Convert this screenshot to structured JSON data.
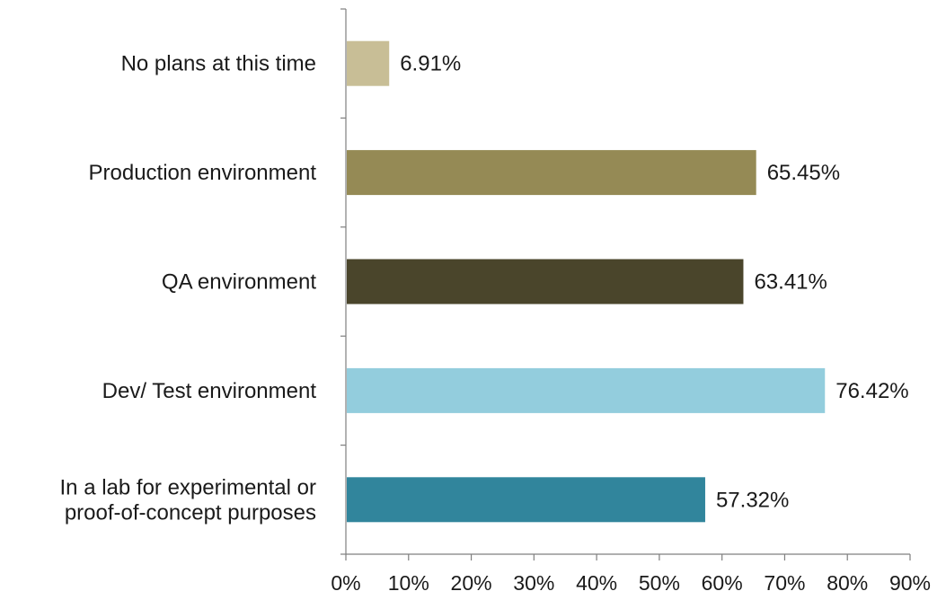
{
  "chart_data": {
    "type": "bar",
    "orientation": "horizontal",
    "categories": [
      [
        "No plans at this time"
      ],
      [
        "Production environment"
      ],
      [
        "QA environment"
      ],
      [
        "Dev/ Test environment"
      ],
      [
        "In a lab for experimental or",
        "proof-of-concept purposes"
      ]
    ],
    "values": [
      6.91,
      65.45,
      63.41,
      76.42,
      57.32
    ],
    "value_labels": [
      "6.91%",
      "65.45%",
      "63.41%",
      "76.42%",
      "57.32%"
    ],
    "colors": [
      "#c8be96",
      "#958a55",
      "#4a452b",
      "#93cddd",
      "#31859c"
    ],
    "xlim": [
      0,
      90
    ],
    "x_ticks": [
      "0%",
      "10%",
      "20%",
      "30%",
      "40%",
      "50%",
      "60%",
      "70%",
      "80%",
      "90%"
    ],
    "grid": false,
    "legend": "none"
  }
}
